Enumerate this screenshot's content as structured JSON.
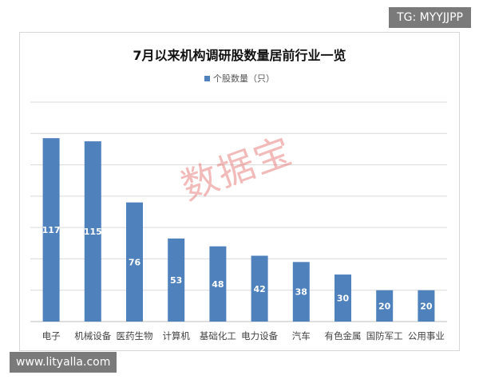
{
  "tag_top": "TG: MYYJJPP",
  "tag_bottom": "www.lityalla.com",
  "watermark": "数据宝",
  "colors": {
    "bar": "#4f81bd",
    "gridline": "#d9d9d9",
    "bar_label": "#ffffff",
    "tag_bg": "#6f6f6f",
    "watermark": "#e25a5a"
  },
  "chart_data": {
    "type": "bar",
    "title": "7月以来机构调研股数量居前行业一览",
    "xlabel": "",
    "ylabel": "",
    "categories": [
      "电子",
      "机械设备",
      "医药生物",
      "计算机",
      "基础化工",
      "电力设备",
      "汽车",
      "有色金属",
      "国防军工",
      "公用事业"
    ],
    "series": [
      {
        "name": "个股数量（只）",
        "values": [
          117,
          115,
          76,
          53,
          48,
          42,
          38,
          30,
          20,
          20
        ]
      }
    ],
    "ylim": [
      0,
      140
    ],
    "grid": true,
    "legend": "top",
    "data_labels": true
  }
}
